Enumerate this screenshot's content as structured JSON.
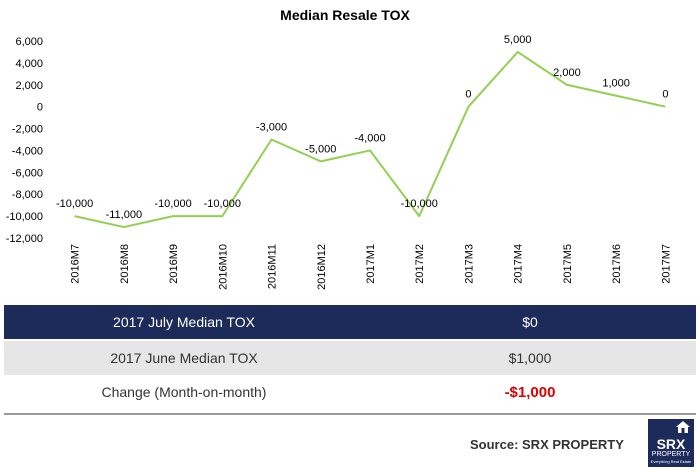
{
  "chart_data": {
    "type": "line",
    "title": "Median Resale TOX",
    "categories": [
      "2016M7",
      "2016M8",
      "2016M9",
      "2016M10",
      "2016M11",
      "2016M12",
      "2017M1",
      "2017M2",
      "2017M3",
      "2017M4",
      "2017M5",
      "2017M6",
      "2017M7"
    ],
    "values": [
      -10000,
      -11000,
      -10000,
      -10000,
      -3000,
      -5000,
      -4000,
      -10000,
      0,
      5000,
      2000,
      1000,
      0
    ],
    "data_labels": [
      "-10,000",
      "-11,000",
      "-10,000",
      "-10,000",
      "-3,000",
      "-5,000",
      "-4,000",
      "-10,000",
      "0",
      "5,000",
      "2,000",
      "1,000",
      "0"
    ],
    "ylim": [
      -12000,
      6000
    ],
    "yticks": [
      6000,
      4000,
      2000,
      0,
      -2000,
      -4000,
      -6000,
      -8000,
      -10000,
      -12000
    ],
    "ytick_labels": [
      "6,000",
      "4,000",
      "2,000",
      "0",
      "-2,000",
      "-4,000",
      "-6,000",
      "-8,000",
      "-10,000",
      "-12,000"
    ],
    "line_color": "#92d050",
    "grid": false,
    "legend": "none"
  },
  "summary": {
    "rows": [
      {
        "label": "2017 July Median TOX",
        "value": "$0"
      },
      {
        "label": "2017 June Median TOX",
        "value": "$1,000"
      },
      {
        "label": "Change (Month-on-month)",
        "value": "-$1,000"
      }
    ],
    "header_color": "#1d2b5a",
    "change_color": "#e00000"
  },
  "footer": {
    "source": "Source:  SRX PROPERTY",
    "logo_brand": "SRX",
    "logo_sub": "PROPERTY",
    "logo_tag": "Everything Real Estate",
    "logo_icon": "house-icon"
  }
}
